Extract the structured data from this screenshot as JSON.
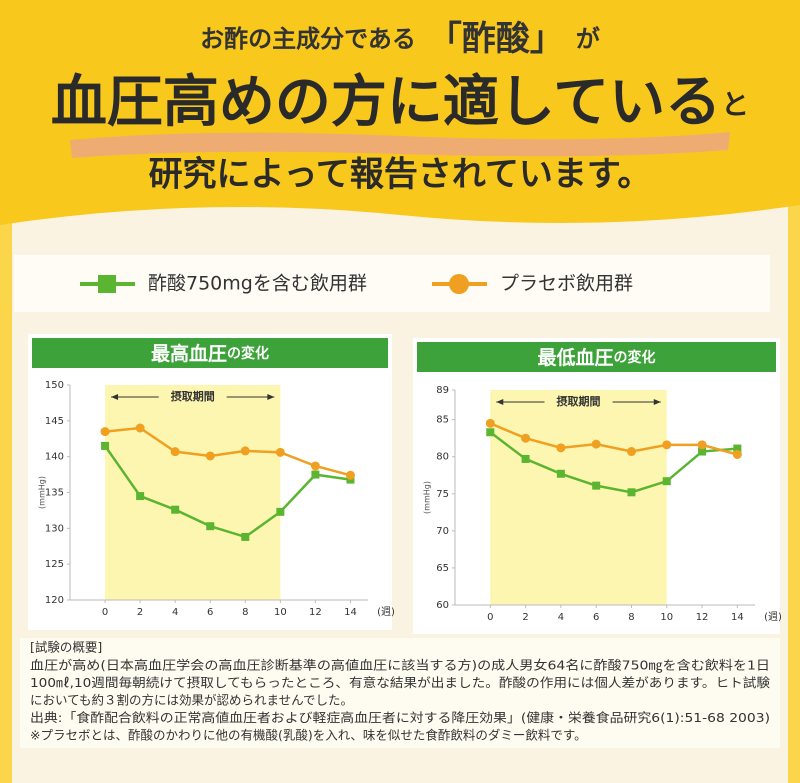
{
  "header": {
    "line1_pre": "お酢の主成分である",
    "line1_highlight": "「酢酸」",
    "line1_post": "が",
    "line2_main": "血圧高めの方に適している",
    "line2_post": "と",
    "line3": "研究によって報告されています。"
  },
  "chart_data": [
    {
      "type": "line",
      "title_main": "最高血圧",
      "title_sub": "の変化",
      "y_label": "(mmHg)",
      "x_unit": "(週)",
      "period_label": "摂取期間",
      "period": [
        0,
        10
      ],
      "period_color": "#fdf6b0",
      "x": [
        0,
        2,
        4,
        6,
        8,
        10,
        12,
        14
      ],
      "xlim": [
        -2,
        15
      ],
      "xticks": [
        0,
        2,
        4,
        6,
        8,
        10,
        12,
        14
      ],
      "ylim": [
        120,
        150
      ],
      "yticks": [
        120,
        125,
        130,
        135,
        140,
        145,
        150
      ],
      "series": [
        {
          "name": "酢酸750mgを含む飲用群",
          "color": "#5cb531",
          "marker": "square",
          "values": [
            141.5,
            134.5,
            132.6,
            130.3,
            128.8,
            132.3,
            137.5,
            136.8
          ]
        },
        {
          "name": "プラセボ飲用群",
          "color": "#f0a020",
          "marker": "circle",
          "values": [
            143.5,
            144,
            140.7,
            140.1,
            140.8,
            140.6,
            138.7,
            137.4
          ]
        }
      ]
    },
    {
      "type": "line",
      "title_main": "最低血圧",
      "title_sub": "の変化",
      "y_label": "(mmHg)",
      "x_unit": "(週)",
      "period_label": "摂取期間",
      "period": [
        0,
        10
      ],
      "period_color": "#fdf6b0",
      "x": [
        0,
        2,
        4,
        6,
        8,
        10,
        12,
        14
      ],
      "xlim": [
        -2,
        15
      ],
      "xticks": [
        0,
        2,
        4,
        6,
        8,
        10,
        12,
        14
      ],
      "ylim": [
        60,
        89
      ],
      "yticks": [
        60,
        65,
        70,
        75,
        80,
        85,
        89
      ],
      "series": [
        {
          "name": "酢酸750mgを含む飲用群",
          "color": "#5cb531",
          "marker": "square",
          "values": [
            83.3,
            79.7,
            77.7,
            76.1,
            75.2,
            76.7,
            80.7,
            81.1
          ]
        },
        {
          "name": "プラセボ飲用群",
          "color": "#f0a020",
          "marker": "circle",
          "values": [
            84.5,
            82.5,
            81.2,
            81.7,
            80.7,
            81.6,
            81.6,
            80.3
          ]
        }
      ]
    }
  ],
  "notes": {
    "title": "[試験の概要]",
    "lines": [
      "血圧が高め(日本高血圧学会の高血圧診断基準の高値血圧に該当する方)の成人男女64名に酢酸750㎎を含む飲料を1日",
      "100㎖,10週間毎朝続けて摂取してもらったところ、有意な結果が出ました。酢酸の作用には個人差があります。ヒト試験",
      "においても約３割の方には効果が認められませんでした。",
      "出典:「食酢配合飲料の正常高値血圧者および軽症高血圧者に対する降圧効果」(健康・栄養食品研究6(1):51-68 2003)",
      "※プラセボとは、酢酸のかわりに他の有機酸(乳酸)を入れ、味を似せた食酢飲料のダミー飲料です。"
    ]
  }
}
